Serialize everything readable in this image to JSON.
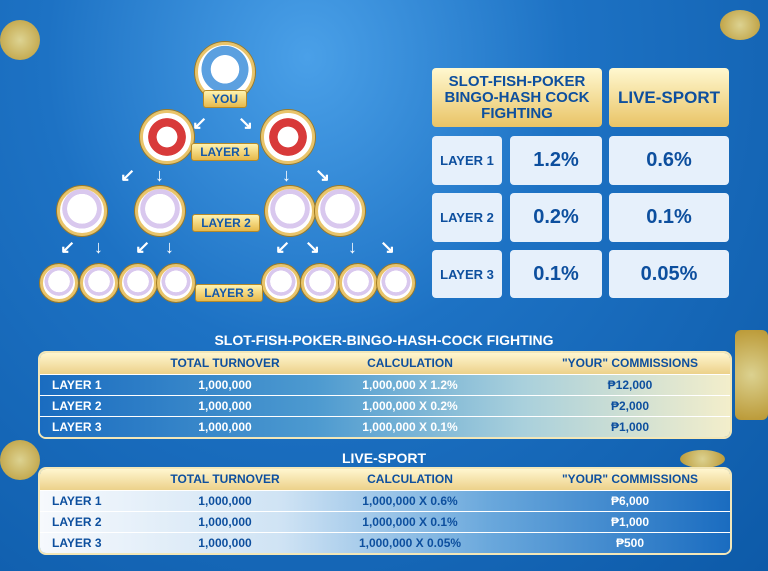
{
  "tree": {
    "root_label": "YOU",
    "layer_labels": [
      "LAYER 1",
      "LAYER 2",
      "LAYER 3"
    ]
  },
  "rate_table": {
    "headers": [
      "SLOT-FISH-POKER BINGO-HASH COCK FIGHTING",
      "LIVE-SPORT"
    ],
    "rows": [
      {
        "layer": "LAYER 1",
        "slot": "1.2%",
        "sport": "0.6%"
      },
      {
        "layer": "LAYER 2",
        "slot": "0.2%",
        "sport": "0.1%"
      },
      {
        "layer": "LAYER 3",
        "slot": "0.1%",
        "sport": "0.05%"
      }
    ]
  },
  "tables": [
    {
      "title": "SLOT-FISH-POKER-BINGO-HASH-COCK FIGHTING",
      "columns": [
        "",
        "TOTAL TURNOVER",
        "CALCULATION",
        "\"YOUR\" COMMISSIONS"
      ],
      "rows": [
        {
          "layer": "LAYER 1",
          "turnover": "1,000,000",
          "calc": "1,000,000 X 1.2%",
          "commission": "₱12,000"
        },
        {
          "layer": "LAYER 2",
          "turnover": "1,000,000",
          "calc": "1,000,000 X 0.2%",
          "commission": "₱2,000"
        },
        {
          "layer": "LAYER 3",
          "turnover": "1,000,000",
          "calc": "1,000,000 X 0.1%",
          "commission": "₱1,000"
        }
      ]
    },
    {
      "title": "LIVE-SPORT",
      "columns": [
        "",
        "TOTAL TURNOVER",
        "CALCULATION",
        "\"YOUR\" COMMISSIONS"
      ],
      "rows": [
        {
          "layer": "LAYER 1",
          "turnover": "1,000,000",
          "calc": "1,000,000 X 0.6%",
          "commission": "₱6,000"
        },
        {
          "layer": "LAYER 2",
          "turnover": "1,000,000",
          "calc": "1,000,000 X 0.1%",
          "commission": "₱1,000"
        },
        {
          "layer": "LAYER 3",
          "turnover": "1,000,000",
          "calc": "1,000,000 X 0.05%",
          "commission": "₱500"
        }
      ]
    }
  ],
  "colors": {
    "background": "#1d72c4",
    "gold": "#e9c466",
    "text_blue": "#0d4f9e"
  }
}
